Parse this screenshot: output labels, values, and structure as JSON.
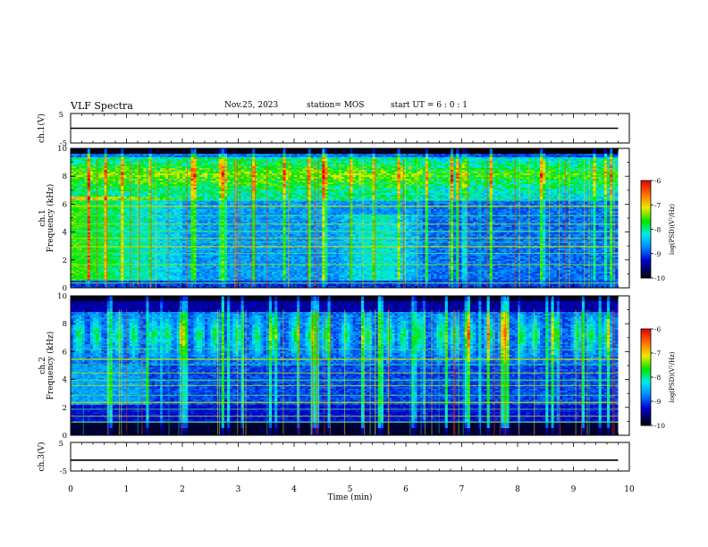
{
  "header": {
    "title": "VLF Spectra",
    "date": "Nov.25, 2023",
    "station": "station= MOS",
    "start": "start  UT  =   6 : 0  : 1"
  },
  "chart_data": [
    {
      "type": "line",
      "name": "ch1-voltage",
      "ylabel": "ch.1(V)",
      "ylim": [
        -5,
        5
      ],
      "yticks": [
        "5",
        "-5"
      ],
      "x": [
        0,
        9.8
      ],
      "y": [
        0,
        0
      ]
    },
    {
      "type": "heatmap",
      "name": "ch1-spectrogram",
      "ylabel": "ch.1\nFrequency (kHz)",
      "xlim": [
        0,
        10
      ],
      "ylim": [
        0,
        10
      ],
      "yticks": [
        "0",
        "2",
        "4",
        "6",
        "8",
        "10"
      ],
      "data_xmax": 9.8,
      "colorbar": {
        "label": "log(PSD)(V²/Hz)",
        "ticks": [
          "-6",
          "-7",
          "-8",
          "-9",
          "-10"
        ],
        "range": [
          -10,
          -6
        ]
      }
    },
    {
      "type": "heatmap",
      "name": "ch2-spectrogram",
      "ylabel": "ch.2\nFrequency (kHz)",
      "xlim": [
        0,
        10
      ],
      "ylim": [
        0,
        10
      ],
      "yticks": [
        "0",
        "2",
        "4",
        "6",
        "8",
        "10"
      ],
      "data_xmax": 9.8,
      "colorbar": {
        "label": "log(PSD)(V²/Hz)",
        "ticks": [
          "-6",
          "-7",
          "-8",
          "-9",
          "-10"
        ],
        "range": [
          -10,
          -6
        ]
      }
    },
    {
      "type": "line",
      "name": "ch3-voltage",
      "ylabel": "ch.3(V)",
      "ylim": [
        -5,
        5
      ],
      "yticks": [
        "5",
        "-5"
      ],
      "x": [
        0,
        9.8
      ],
      "y": [
        -1.2,
        -1.2
      ]
    }
  ],
  "xaxis": {
    "label": "Time  (min)",
    "ticks": [
      "0",
      "1",
      "2",
      "3",
      "4",
      "5",
      "6",
      "7",
      "8",
      "9",
      "10"
    ]
  }
}
